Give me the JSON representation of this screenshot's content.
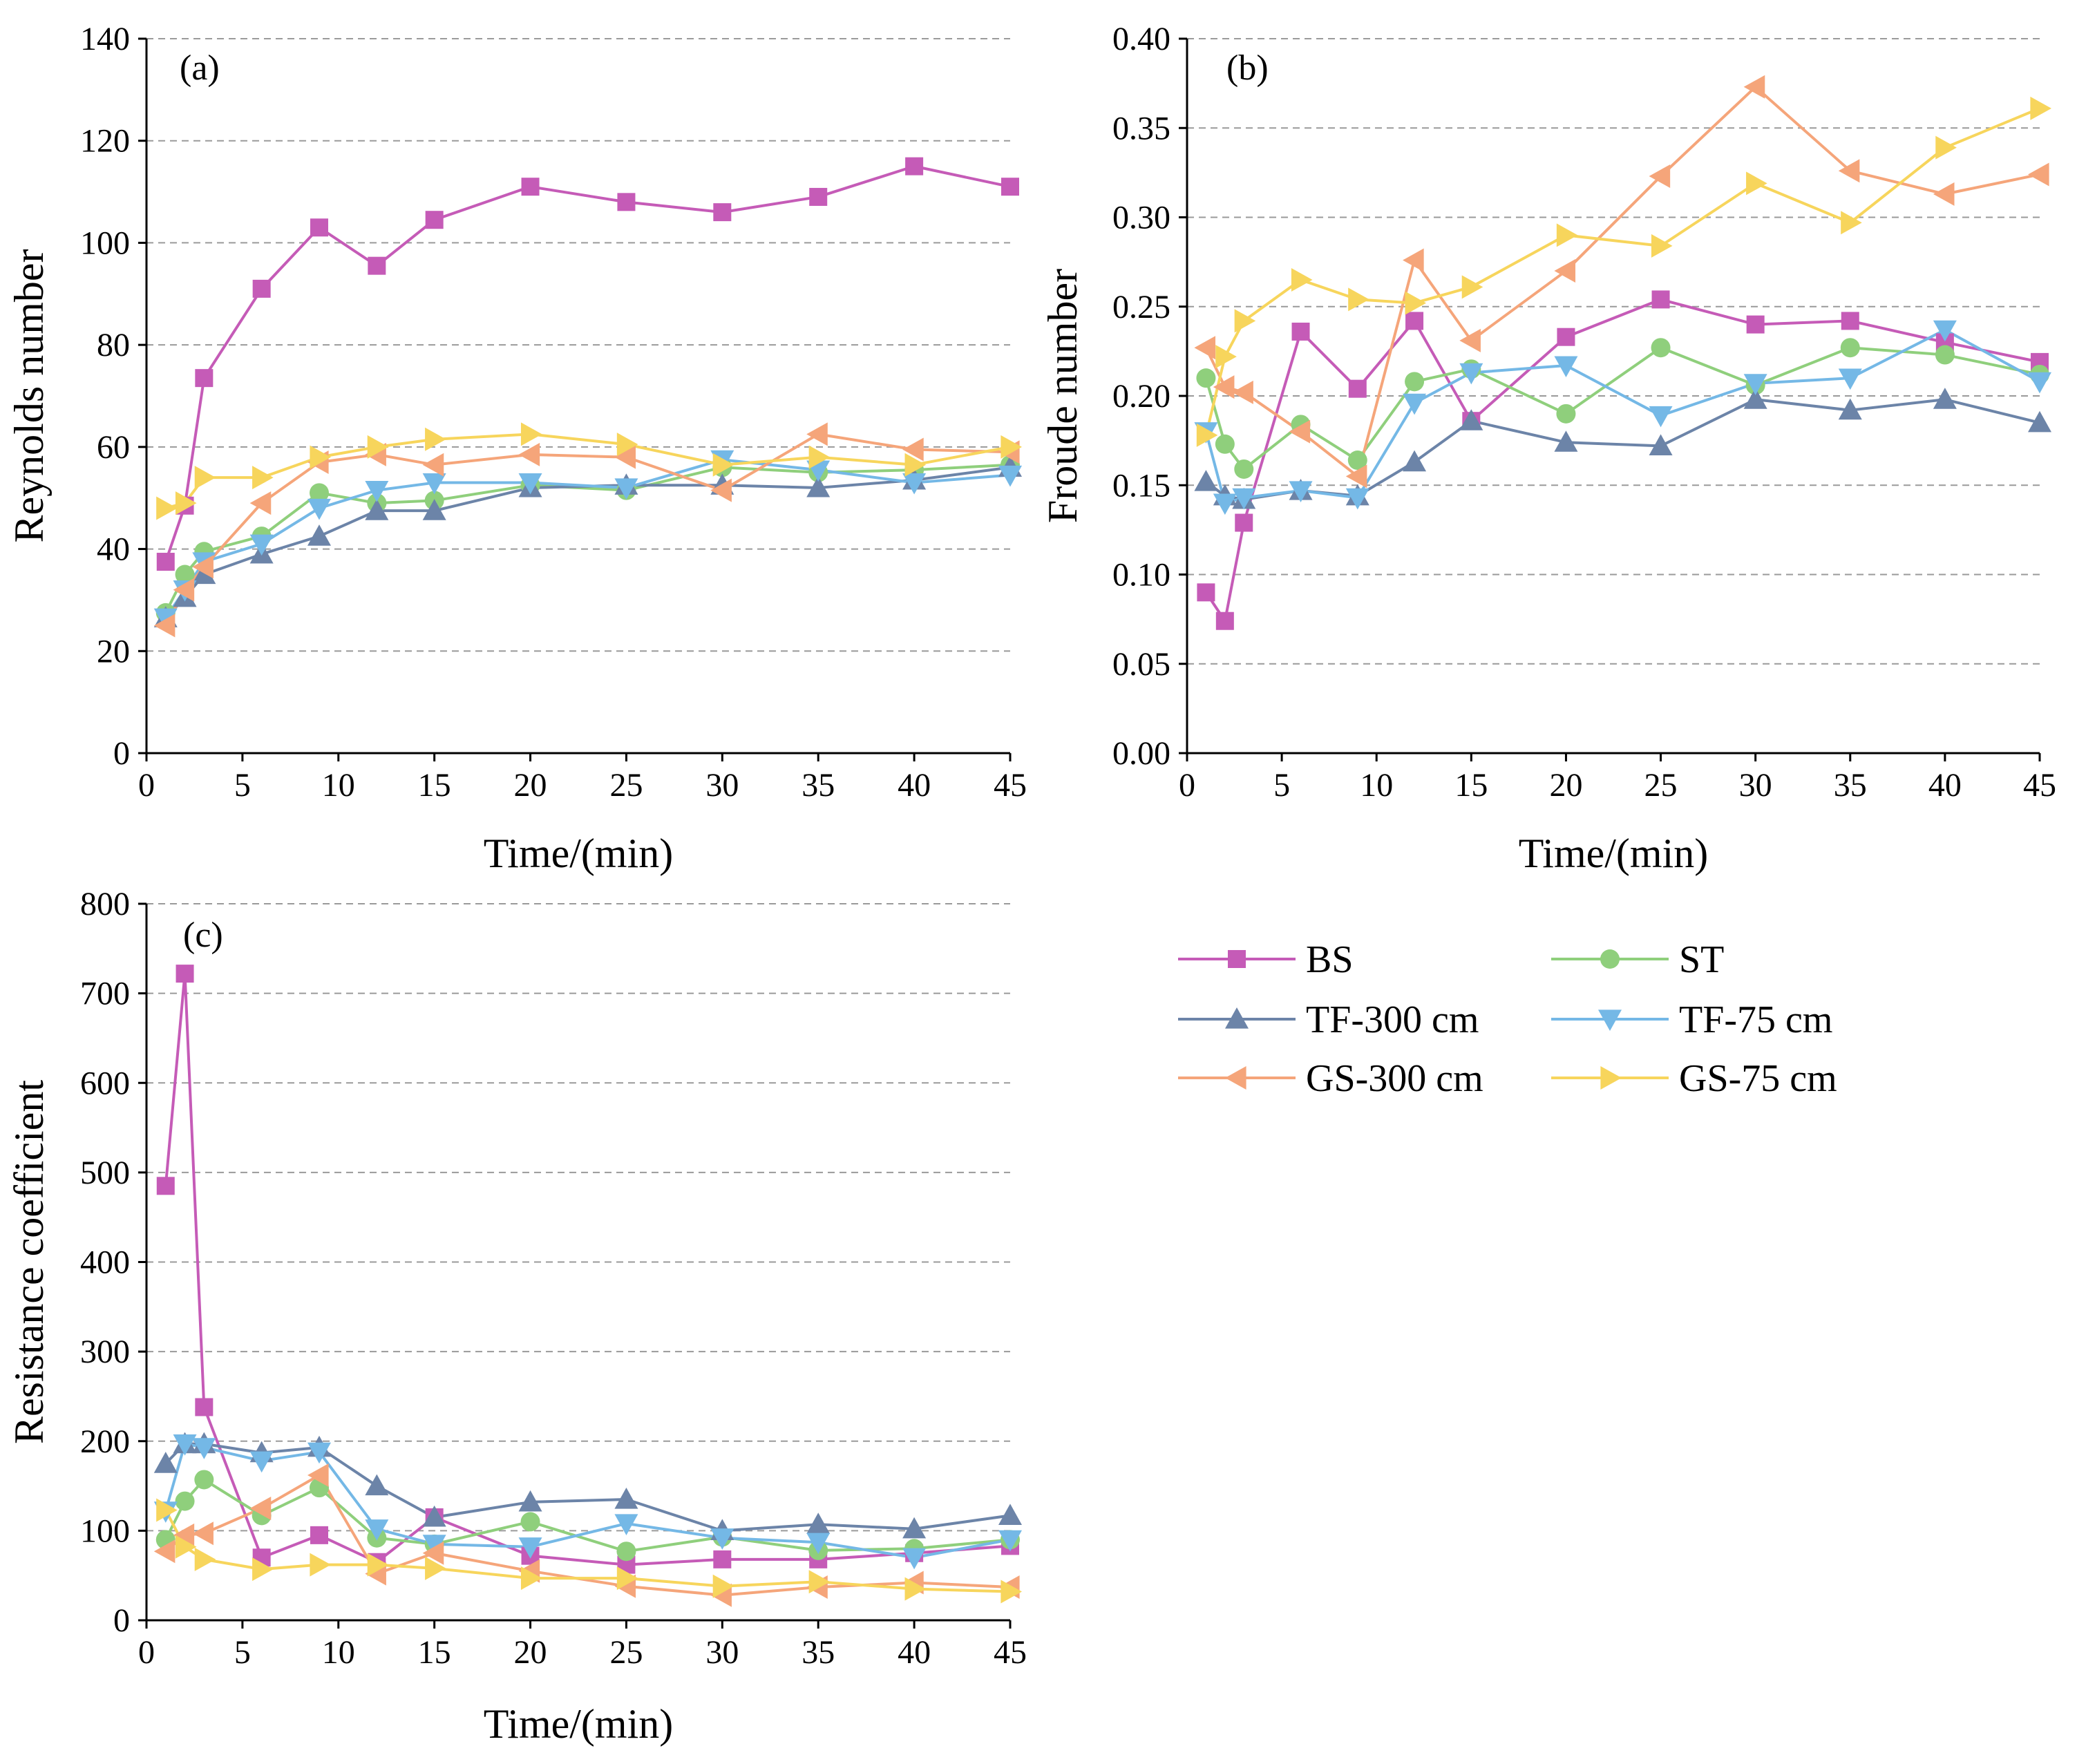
{
  "chart_data": [
    {
      "id": "a",
      "type": "line",
      "panel_label": "(a)",
      "xlabel": "Time/(min)",
      "ylabel": "Reynolds number",
      "xlim": [
        0,
        45
      ],
      "ylim": [
        0,
        140
      ],
      "xticks": [
        0,
        5,
        10,
        15,
        20,
        25,
        30,
        35,
        40,
        45
      ],
      "yticks": [
        0,
        20,
        40,
        60,
        80,
        100,
        120,
        140
      ],
      "ytick_labels": [
        "0",
        "20",
        "40",
        "60",
        "80",
        "100",
        "120",
        "140"
      ],
      "grid": true,
      "x": [
        1,
        2,
        3,
        6,
        9,
        12,
        15,
        20,
        25,
        30,
        35,
        40,
        45
      ],
      "series": [
        {
          "name": "BS",
          "values": [
            37.5,
            48.5,
            73.5,
            91,
            103,
            95.5,
            104.5,
            111,
            108,
            106,
            109,
            115,
            111
          ]
        },
        {
          "name": "ST",
          "values": [
            27.5,
            35,
            39.5,
            42.5,
            51,
            49,
            49.5,
            52.5,
            51.5,
            56,
            55,
            55.5,
            56.5
          ]
        },
        {
          "name": "TF-300 cm",
          "values": [
            26.5,
            30.5,
            35,
            39,
            42.5,
            47.5,
            47.5,
            52,
            52.5,
            52.5,
            52,
            53.5,
            56
          ]
        },
        {
          "name": "TF-75 cm",
          "values": [
            26.5,
            32,
            37.5,
            41,
            48,
            51.5,
            53,
            53,
            52,
            57.5,
            55.5,
            53,
            54.5
          ]
        },
        {
          "name": "GS-300 cm",
          "values": [
            25,
            32,
            36.5,
            49,
            57,
            58.5,
            56.5,
            58.5,
            58,
            51.5,
            62.5,
            59.5,
            59
          ]
        },
        {
          "name": "GS-75 cm",
          "values": [
            48,
            49,
            54,
            54,
            58,
            60,
            61.5,
            62.5,
            60.5,
            56.5,
            58,
            56.5,
            60
          ]
        }
      ]
    },
    {
      "id": "b",
      "type": "line",
      "panel_label": "(b)",
      "xlabel": "Time/(min)",
      "ylabel": "Froude number",
      "xlim": [
        0,
        45
      ],
      "ylim": [
        0,
        0.4
      ],
      "xticks": [
        0,
        5,
        10,
        15,
        20,
        25,
        30,
        35,
        40,
        45
      ],
      "yticks": [
        0,
        0.05,
        0.1,
        0.15,
        0.2,
        0.25,
        0.3,
        0.35,
        0.4
      ],
      "ytick_labels": [
        "0.00",
        "0.05",
        "0.10",
        "0.15",
        "0.20",
        "0.25",
        "0.30",
        "0.35",
        "0.40"
      ],
      "grid": true,
      "x": [
        1,
        2,
        3,
        6,
        9,
        12,
        15,
        20,
        25,
        30,
        35,
        40,
        45
      ],
      "series": [
        {
          "name": "BS",
          "values": [
            0.09,
            0.074,
            0.129,
            0.236,
            0.204,
            0.242,
            0.186,
            0.233,
            0.254,
            0.24,
            0.242,
            0.23,
            0.219
          ]
        },
        {
          "name": "ST",
          "values": [
            0.21,
            0.173,
            0.159,
            0.184,
            0.164,
            0.208,
            0.215,
            0.19,
            0.227,
            0.206,
            0.227,
            0.223,
            0.212
          ]
        },
        {
          "name": "TF-300 cm",
          "values": [
            0.152,
            0.144,
            0.142,
            0.147,
            0.144,
            0.163,
            0.186,
            0.174,
            0.172,
            0.198,
            0.192,
            0.198,
            0.185
          ]
        },
        {
          "name": "TF-75 cm",
          "values": [
            0.18,
            0.14,
            0.143,
            0.147,
            0.143,
            0.196,
            0.213,
            0.217,
            0.189,
            0.207,
            0.21,
            0.237,
            0.208
          ]
        },
        {
          "name": "GS-300 cm",
          "values": [
            0.227,
            0.205,
            0.202,
            0.18,
            0.155,
            0.276,
            0.231,
            0.27,
            0.323,
            0.373,
            0.326,
            0.313,
            0.324
          ]
        },
        {
          "name": "GS-75 cm",
          "values": [
            0.178,
            0.222,
            0.242,
            0.265,
            0.254,
            0.252,
            0.261,
            0.29,
            0.284,
            0.319,
            0.297,
            0.339,
            0.361
          ]
        }
      ]
    },
    {
      "id": "c",
      "type": "line",
      "panel_label": "(c)",
      "xlabel": "Time/(min)",
      "ylabel": "Resistance coefficient",
      "xlim": [
        0,
        45
      ],
      "ylim": [
        0,
        800
      ],
      "xticks": [
        0,
        5,
        10,
        15,
        20,
        25,
        30,
        35,
        40,
        45
      ],
      "yticks": [
        0,
        100,
        200,
        300,
        400,
        500,
        600,
        700,
        800
      ],
      "ytick_labels": [
        "0",
        "100",
        "200",
        "300",
        "400",
        "500",
        "600",
        "700",
        "800"
      ],
      "grid": true,
      "x": [
        1,
        2,
        3,
        6,
        9,
        12,
        15,
        20,
        25,
        30,
        35,
        40,
        45
      ],
      "series": [
        {
          "name": "BS",
          "values": [
            485,
            722,
            238,
            70,
            95,
            65,
            115,
            72,
            62,
            68,
            68,
            75,
            83
          ]
        },
        {
          "name": "ST",
          "values": [
            90,
            133,
            157,
            117,
            148,
            92,
            85,
            110,
            77,
            93,
            78,
            80,
            90
          ]
        },
        {
          "name": "TF-300 cm",
          "values": [
            175,
            197,
            197,
            187,
            193,
            150,
            115,
            132,
            135,
            100,
            107,
            102,
            117
          ]
        },
        {
          "name": "TF-75 cm",
          "values": [
            122,
            197,
            193,
            178,
            188,
            102,
            85,
            82,
            108,
            92,
            87,
            70,
            90
          ]
        },
        {
          "name": "GS-300 cm",
          "values": [
            77,
            95,
            97,
            125,
            162,
            52,
            75,
            55,
            38,
            28,
            37,
            42,
            37
          ]
        },
        {
          "name": "GS-75 cm",
          "values": [
            123,
            82,
            68,
            57,
            62,
            62,
            58,
            47,
            47,
            38,
            43,
            35,
            32
          ]
        }
      ]
    }
  ],
  "legend": {
    "placement": "bottom-right",
    "items": [
      {
        "name": "BS",
        "color": "#c55bb7",
        "marker": "square"
      },
      {
        "name": "ST",
        "color": "#8fcf7c",
        "marker": "circle"
      },
      {
        "name": "TF-300 cm",
        "color": "#6c84a8",
        "marker": "triangle-up"
      },
      {
        "name": "TF-75 cm",
        "color": "#74b8e6",
        "marker": "triangle-down"
      },
      {
        "name": "GS-300 cm",
        "color": "#f5a57a",
        "marker": "triangle-left"
      },
      {
        "name": "GS-75 cm",
        "color": "#f7d55c",
        "marker": "triangle-right"
      }
    ]
  }
}
